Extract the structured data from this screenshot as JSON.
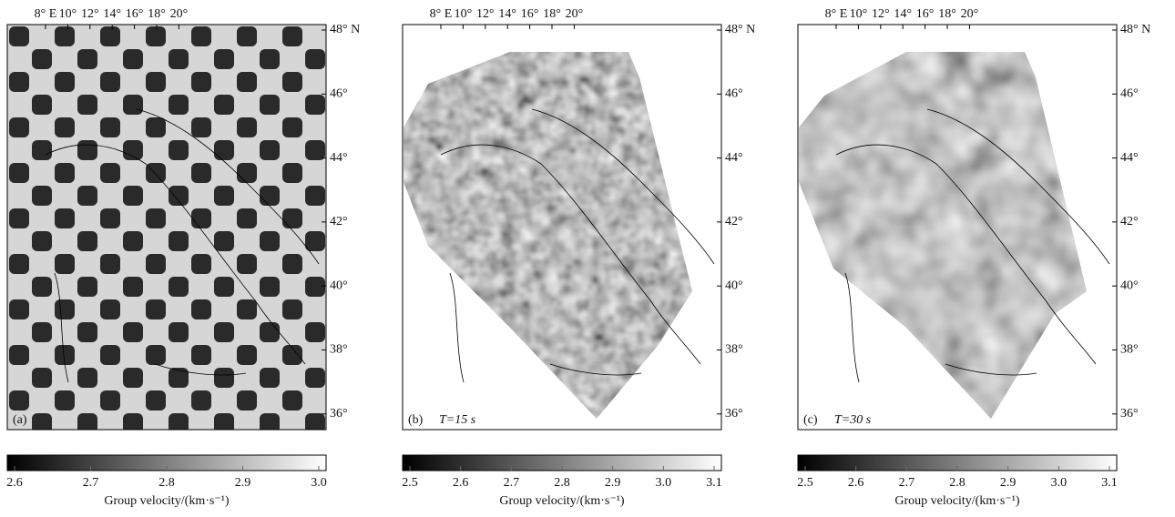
{
  "panels": [
    {
      "tag": "(a)",
      "period": null,
      "lon_ticks": [
        "8° E",
        "10°",
        "12°",
        "14°",
        "16°",
        "18°",
        "20°"
      ],
      "lat_ticks": [
        "48° N",
        "46°",
        "44°",
        "42°",
        "40°",
        "38°",
        "36°"
      ],
      "colorbar": {
        "ticks": [
          "2.6",
          "2.7",
          "2.8",
          "2.9",
          "3.0"
        ],
        "label": "Group velocity/(km·s⁻¹)"
      }
    },
    {
      "tag": "(b)",
      "period": "T=15 s",
      "lon_ticks": [
        "8° E",
        "10°",
        "12°",
        "14°",
        "16°",
        "18°",
        "20°"
      ],
      "lat_ticks": [
        "48° N",
        "46°",
        "44°",
        "42°",
        "40°",
        "38°",
        "36°"
      ],
      "colorbar": {
        "ticks": [
          "2.5",
          "2.6",
          "2.7",
          "2.8",
          "2.9",
          "3.0",
          "3.1"
        ],
        "label": "Group velocity/(km·s⁻¹)"
      }
    },
    {
      "tag": "(c)",
      "period": "T=30 s",
      "lon_ticks": [
        "8° E",
        "10°",
        "12°",
        "14°",
        "16°",
        "18°",
        "20°"
      ],
      "lat_ticks": [
        "48° N",
        "46°",
        "44°",
        "42°",
        "40°",
        "38°",
        "36°"
      ],
      "colorbar": {
        "ticks": [
          "2.5",
          "2.6",
          "2.7",
          "2.8",
          "2.9",
          "3.0",
          "3.1"
        ],
        "label": "Group velocity/(km·s⁻¹)"
      }
    }
  ]
}
